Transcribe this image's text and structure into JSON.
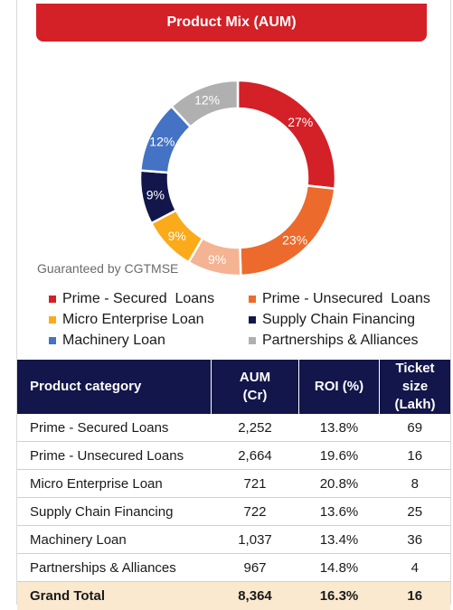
{
  "header": {
    "title": "Product Mix (AUM)"
  },
  "note": "Guaranteed by CGTMSE",
  "chart_data": {
    "type": "pie",
    "title": "Product Mix (AUM)",
    "donut": true,
    "slices": [
      {
        "label": "Prime - Secured  Loans",
        "value": 27,
        "value_label": "27%",
        "color": "#d42027"
      },
      {
        "label": "Prime - Unsecured  Loans",
        "value": 23,
        "value_label": "23%",
        "color": "#ec6a2c"
      },
      {
        "label": "Prime - Unsecured  Loans (Guaranteed by CGTMSE)",
        "value": 9,
        "value_label": "9%",
        "color": "#f4b392"
      },
      {
        "label": "Micro Enterprise Loan",
        "value": 9,
        "value_label": "9%",
        "color": "#fbaa19"
      },
      {
        "label": "Supply Chain Financing",
        "value": 9,
        "value_label": "9%",
        "color": "#13164a"
      },
      {
        "label": "Machinery Loan",
        "value": 12,
        "value_label": "12%",
        "color": "#4472c4"
      },
      {
        "label": "Partnerships & Alliances",
        "value": 12,
        "value_label": "12%",
        "color": "#b0b0b0"
      }
    ]
  },
  "legend": [
    {
      "label": "Prime - Secured  Loans",
      "color": "#d42027"
    },
    {
      "label": "Prime - Unsecured  Loans",
      "color": "#ec6a2c"
    },
    {
      "label": "Micro Enterprise Loan",
      "color": "#fbaa19"
    },
    {
      "label": "Supply Chain Financing",
      "color": "#13164a"
    },
    {
      "label": "Machinery Loan",
      "color": "#4472c4"
    },
    {
      "label": "Partnerships & Alliances",
      "color": "#b0b0b0"
    }
  ],
  "table": {
    "headers": {
      "category": "Product category",
      "aum_line1": "AUM",
      "aum_line2": "(Cr)",
      "roi": "ROI (%)",
      "ticket_line1": "Ticket size",
      "ticket_line2": "(Lakh)"
    },
    "rows": [
      {
        "category": "Prime - Secured Loans",
        "aum": "2,252",
        "roi": "13.8%",
        "ticket": "69"
      },
      {
        "category": "Prime - Unsecured Loans",
        "aum": "2,664",
        "roi": "19.6%",
        "ticket": "16"
      },
      {
        "category": "Micro Enterprise Loan",
        "aum": "721",
        "roi": "20.8%",
        "ticket": "8"
      },
      {
        "category": "Supply Chain Financing",
        "aum": "722",
        "roi": "13.6%",
        "ticket": "25"
      },
      {
        "category": "Machinery Loan",
        "aum": "1,037",
        "roi": "13.4%",
        "ticket": "36"
      },
      {
        "category": "Partnerships & Alliances",
        "aum": "967",
        "roi": "14.8%",
        "ticket": "4"
      }
    ],
    "total": {
      "category": "Grand Total",
      "aum": "8,364",
      "roi": "16.3%",
      "ticket": "16"
    }
  }
}
